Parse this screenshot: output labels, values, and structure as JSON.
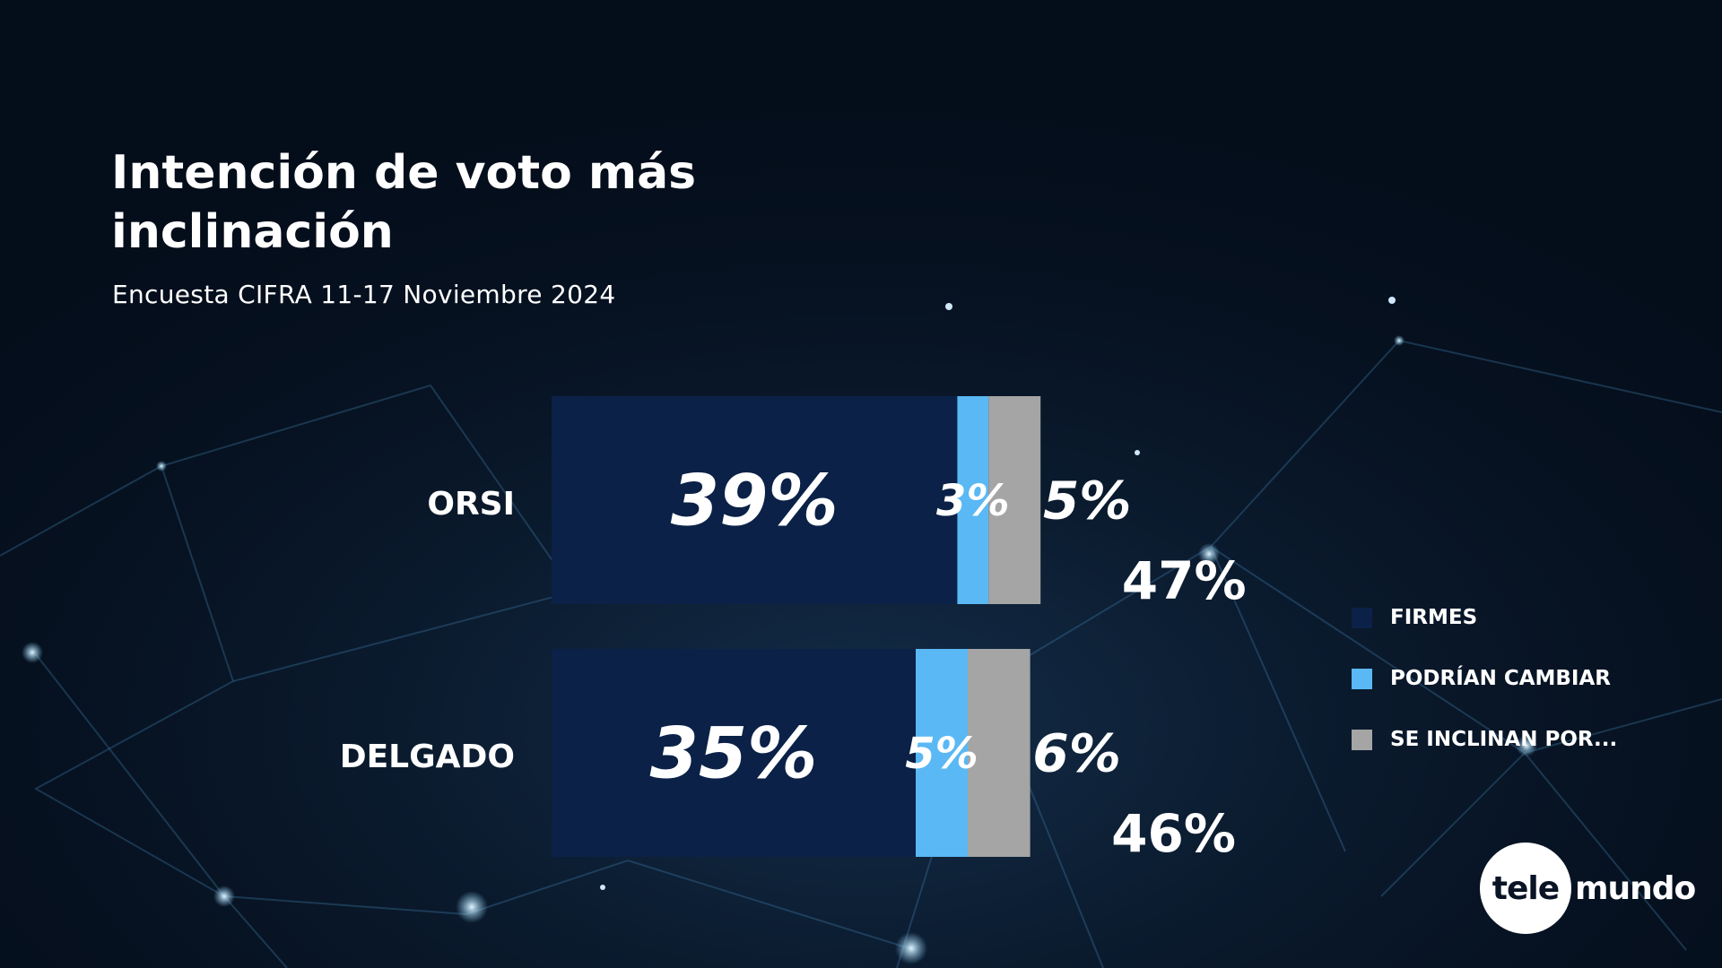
{
  "title": "Intención de voto más inclinación",
  "subtitle": "Encuesta CIFRA 11-17 Noviembre 2024",
  "colors": {
    "background": "#040d1a",
    "firmes": "#0b2147",
    "podrian_cambiar": "#5ab8f4",
    "se_inclinan": "#a5a5a5",
    "text": "#ffffff"
  },
  "chart_data": {
    "type": "bar",
    "orientation": "horizontal",
    "stacked": true,
    "title": "Intención de voto más inclinación",
    "subtitle": "Encuesta CIFRA 11-17 Noviembre 2024",
    "categories": [
      "ORSI",
      "DELGADO"
    ],
    "series": [
      {
        "name": "FIRMES",
        "values": [
          39,
          35
        ],
        "labels": [
          "39%",
          "35%"
        ],
        "color": "#0b2147"
      },
      {
        "name": "PODRÍAN CAMBIAR",
        "values": [
          3,
          5
        ],
        "labels": [
          "3%",
          "5%"
        ],
        "color": "#5ab8f4"
      },
      {
        "name": "SE INCLINAN POR...",
        "values": [
          5,
          6
        ],
        "labels": [
          "5%",
          "6%"
        ],
        "color": "#a5a5a5"
      }
    ],
    "totals": [
      47,
      46
    ],
    "total_labels": [
      "47%",
      "46%"
    ],
    "xlim": [
      0,
      47
    ],
    "legend_position": "right",
    "grid": false
  },
  "legend": {
    "items": [
      {
        "label": "FIRMES",
        "color": "#0b2147"
      },
      {
        "label": "PODRÍAN CAMBIAR",
        "color": "#5ab8f4"
      },
      {
        "label": "SE INCLINAN POR...",
        "color": "#a5a5a5"
      }
    ]
  },
  "logo": {
    "circle_text": "tele",
    "word_text": "mundo"
  }
}
